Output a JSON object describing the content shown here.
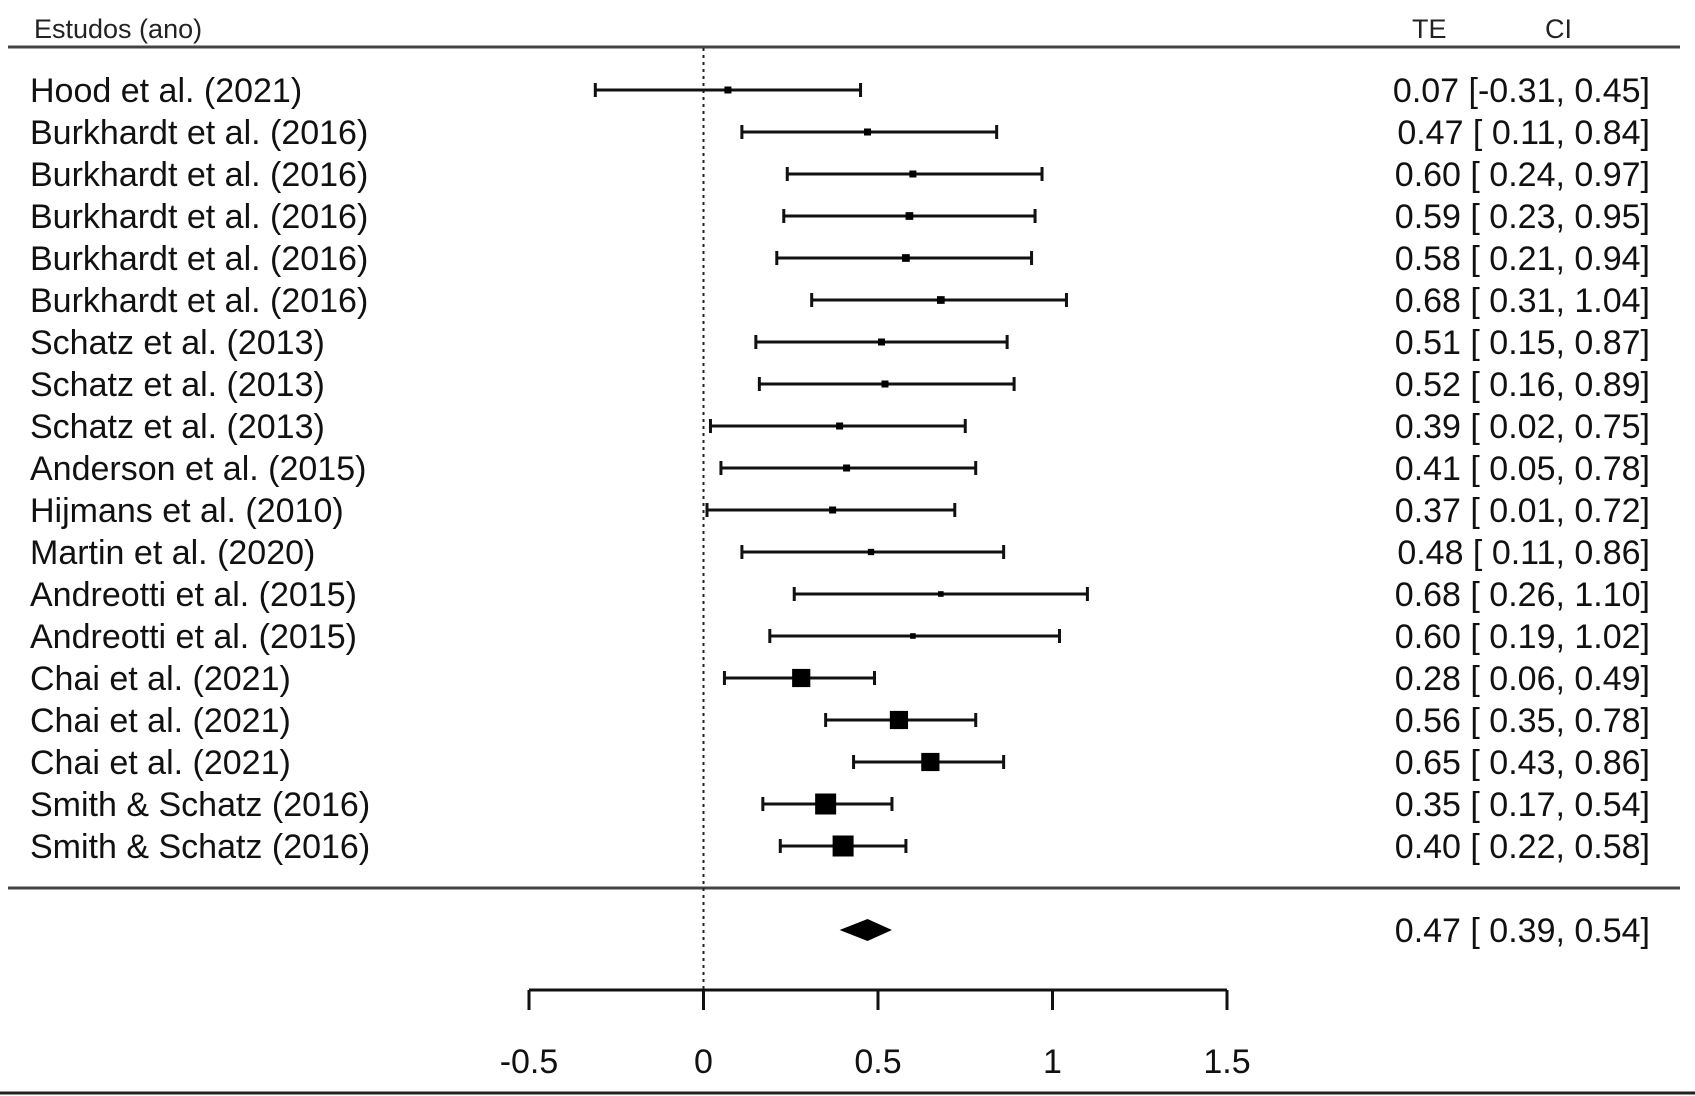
{
  "header": {
    "studies": "Estudos (ano)",
    "te": "TE",
    "ci": "CI"
  },
  "chart_data": {
    "type": "forest",
    "xlim": [
      -0.5,
      1.5
    ],
    "xticks": [
      "-0.5",
      "0",
      "0.5",
      "1",
      "1.5"
    ],
    "xtick_values": [
      -0.5,
      0,
      0.5,
      1,
      1.5
    ],
    "reference_line": 0,
    "studies": [
      {
        "label": "Hood et al. (2021)",
        "te": 0.07,
        "lo": -0.31,
        "hi": 0.45,
        "text": "0.07 [-0.31, 0.45]",
        "weight": 1
      },
      {
        "label": "Burkhardt et al. (2016)",
        "te": 0.47,
        "lo": 0.11,
        "hi": 0.84,
        "text": "0.47 [ 0.11, 0.84]",
        "weight": 1
      },
      {
        "label": "Burkhardt et al. (2016)",
        "te": 0.6,
        "lo": 0.24,
        "hi": 0.97,
        "text": "0.60 [ 0.24, 0.97]",
        "weight": 1
      },
      {
        "label": "Burkhardt et al. (2016)",
        "te": 0.59,
        "lo": 0.23,
        "hi": 0.95,
        "text": "0.59 [ 0.23, 0.95]",
        "weight": 1.1
      },
      {
        "label": "Burkhardt et al. (2016)",
        "te": 0.58,
        "lo": 0.21,
        "hi": 0.94,
        "text": "0.58 [ 0.21, 0.94]",
        "weight": 1.1
      },
      {
        "label": "Burkhardt et al. (2016)",
        "te": 0.68,
        "lo": 0.31,
        "hi": 1.04,
        "text": "0.68 [ 0.31, 1.04]",
        "weight": 1.1
      },
      {
        "label": "Schatz et al. (2013)",
        "te": 0.51,
        "lo": 0.15,
        "hi": 0.87,
        "text": "0.51 [ 0.15, 0.87]",
        "weight": 1
      },
      {
        "label": "Schatz et al. (2013)",
        "te": 0.52,
        "lo": 0.16,
        "hi": 0.89,
        "text": "0.52 [ 0.16, 0.89]",
        "weight": 1
      },
      {
        "label": "Schatz et al. (2013)",
        "te": 0.39,
        "lo": 0.02,
        "hi": 0.75,
        "text": "0.39 [ 0.02, 0.75]",
        "weight": 1
      },
      {
        "label": "Anderson et al. (2015)",
        "te": 0.41,
        "lo": 0.05,
        "hi": 0.78,
        "text": "0.41 [ 0.05, 0.78]",
        "weight": 1
      },
      {
        "label": "Hijmans et al. (2010)",
        "te": 0.37,
        "lo": 0.01,
        "hi": 0.72,
        "text": "0.37 [ 0.01, 0.72]",
        "weight": 1
      },
      {
        "label": "Martin et al. (2020)",
        "te": 0.48,
        "lo": 0.11,
        "hi": 0.86,
        "text": "0.48 [ 0.11, 0.86]",
        "weight": 0.9
      },
      {
        "label": "Andreotti et al. (2015)",
        "te": 0.68,
        "lo": 0.26,
        "hi": 1.1,
        "text": "0.68 [ 0.26, 1.10]",
        "weight": 0.8
      },
      {
        "label": "Andreotti et al. (2015)",
        "te": 0.6,
        "lo": 0.19,
        "hi": 1.02,
        "text": "0.60 [ 0.19, 1.02]",
        "weight": 0.8
      },
      {
        "label": "Chai et al. (2021)",
        "te": 0.28,
        "lo": 0.06,
        "hi": 0.49,
        "text": "0.28 [ 0.06, 0.49]",
        "weight": 2.6
      },
      {
        "label": "Chai et al. (2021)",
        "te": 0.56,
        "lo": 0.35,
        "hi": 0.78,
        "text": "0.56 [ 0.35, 0.78]",
        "weight": 2.6
      },
      {
        "label": "Chai et al. (2021)",
        "te": 0.65,
        "lo": 0.43,
        "hi": 0.86,
        "text": "0.65 [ 0.43, 0.86]",
        "weight": 2.6
      },
      {
        "label": "Smith & Schatz (2016)",
        "te": 0.35,
        "lo": 0.17,
        "hi": 0.54,
        "text": "0.35 [ 0.17, 0.54]",
        "weight": 3.0
      },
      {
        "label": "Smith & Schatz (2016)",
        "te": 0.4,
        "lo": 0.22,
        "hi": 0.58,
        "text": "0.40 [ 0.22, 0.58]",
        "weight": 3.0
      }
    ],
    "summary": {
      "te": 0.47,
      "lo": 0.39,
      "hi": 0.54,
      "text": "0.47 [ 0.39, 0.54]"
    }
  }
}
